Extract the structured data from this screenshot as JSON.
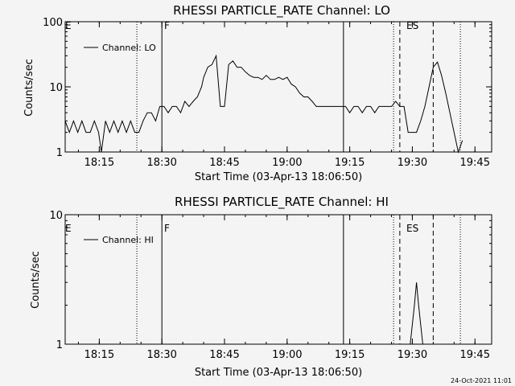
{
  "footer_timestamp": "24-Oct-2021 11:01",
  "colors": {
    "background": "#f4f4f4",
    "foreground": "#000000"
  },
  "chart_data": [
    {
      "type": "line",
      "title": "RHESSI PARTICLE_RATE Channel: LO",
      "xlabel": "Start Time (03-Apr-13 18:06:50)",
      "ylabel": "Counts/sec",
      "y_scale": "log",
      "ylim": [
        1,
        100
      ],
      "xlim": [
        "18:06:50",
        "19:49:00"
      ],
      "x_ticks": [
        "18:15",
        "18:30",
        "18:45",
        "19:00",
        "19:15",
        "19:30",
        "19:45"
      ],
      "y_ticks": [
        "1",
        "10",
        "100"
      ],
      "legend": {
        "position": "top-left",
        "entries": [
          "Channel: LO"
        ]
      },
      "series": [
        {
          "name": "Channel: LO",
          "x": [
            "18:06:50",
            "18:07:50",
            "18:08:50",
            "18:09:50",
            "18:10:50",
            "18:11:50",
            "18:12:50",
            "18:13:50",
            "18:14:50",
            "18:15:30",
            "18:16:30",
            "18:17:30",
            "18:18:30",
            "18:19:30",
            "18:20:30",
            "18:21:30",
            "18:22:30",
            "18:23:30",
            "18:24:30",
            "18:25:30",
            "18:26:30",
            "18:27:30",
            "18:28:30",
            "18:29:30",
            "18:30:30",
            "18:31:30",
            "18:32:30",
            "18:33:30",
            "18:34:30",
            "18:35:30",
            "18:36:30",
            "18:37:30",
            "18:38:30",
            "18:39:30",
            "18:40:00",
            "18:41:00",
            "18:42:00",
            "18:43:00",
            "18:44:00",
            "18:45:00",
            "18:46:00",
            "18:47:00",
            "18:48:00",
            "18:49:00",
            "18:50:00",
            "18:51:00",
            "18:52:00",
            "18:53:00",
            "18:54:00",
            "18:55:00",
            "18:56:00",
            "18:57:00",
            "18:58:00",
            "18:59:00",
            "19:00:00",
            "19:01:00",
            "19:02:00",
            "19:03:00",
            "19:04:00",
            "19:05:00",
            "19:06:00",
            "19:07:00",
            "19:08:00",
            "19:09:00",
            "19:10:00",
            "19:11:00",
            "19:12:00",
            "19:13:00",
            "19:14:00",
            "19:15:00",
            "19:16:00",
            "19:17:00",
            "19:18:00",
            "19:19:00",
            "19:20:00",
            "19:21:00",
            "19:22:00",
            "19:23:00",
            "19:24:00",
            "19:25:00",
            "19:26:00",
            "19:27:00",
            "19:28:00",
            "19:29:00",
            "19:30:00",
            "19:31:00",
            "19:32:00",
            "19:33:00",
            "19:34:00",
            "19:35:00",
            "19:36:00",
            "19:37:00",
            "19:38:00",
            "19:39:00",
            "19:40:00",
            "19:41:00",
            "19:42:00"
          ],
          "values": [
            3,
            2,
            3,
            2,
            3,
            2,
            2,
            3,
            2,
            1,
            3,
            2,
            3,
            2,
            3,
            2,
            3,
            2,
            2,
            3,
            4,
            4,
            3,
            5,
            5,
            4,
            5,
            5,
            4,
            6,
            5,
            6,
            7,
            10,
            14,
            20,
            22,
            30,
            5,
            5,
            22,
            25,
            20,
            20,
            17,
            15,
            14,
            14,
            13,
            15,
            13,
            13,
            14,
            13,
            14,
            11,
            10,
            8,
            7,
            7,
            6,
            5,
            5,
            5,
            5,
            5,
            5,
            5,
            5,
            4,
            5,
            5,
            4,
            5,
            5,
            4,
            5,
            5,
            5,
            5,
            6,
            5,
            5,
            2,
            2,
            2,
            3,
            5,
            10,
            20,
            24,
            15,
            8,
            4,
            2,
            1,
            1.5
          ]
        }
      ],
      "vlines_solid": [
        "18:30:00",
        "19:13:30"
      ],
      "vlines_dotted": [
        "18:24:00",
        "19:25:30",
        "19:41:30"
      ],
      "vlines_dashed": [
        "19:27:00",
        "19:35:00"
      ],
      "annotations": [
        "E",
        "F",
        "ES"
      ]
    },
    {
      "type": "line",
      "title": "RHESSI PARTICLE_RATE Channel: HI",
      "xlabel": "Start Time (03-Apr-13 18:06:50)",
      "ylabel": "Counts/sec",
      "y_scale": "log",
      "ylim": [
        1,
        10
      ],
      "xlim": [
        "18:06:50",
        "19:49:00"
      ],
      "x_ticks": [
        "18:15",
        "18:30",
        "18:45",
        "19:00",
        "19:15",
        "19:30",
        "19:45"
      ],
      "y_ticks": [
        "1",
        "10"
      ],
      "legend": {
        "position": "top-left",
        "entries": [
          "Channel: HI"
        ]
      },
      "series": [
        {
          "name": "Channel: HI",
          "x": [
            "19:29:30",
            "19:30:30",
            "19:31:00",
            "19:31:30",
            "19:32:30"
          ],
          "values": [
            1,
            2,
            3,
            2,
            1
          ]
        }
      ],
      "vlines_solid": [
        "18:30:00",
        "19:13:30"
      ],
      "vlines_dotted": [
        "18:24:00",
        "19:25:30",
        "19:41:30"
      ],
      "vlines_dashed": [
        "19:27:00",
        "19:35:00"
      ],
      "annotations": [
        "E",
        "F",
        "ES"
      ]
    }
  ]
}
